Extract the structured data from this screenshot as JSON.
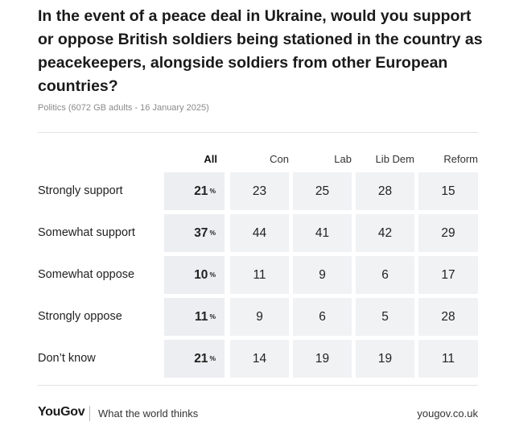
{
  "title": "In the event of a peace deal in Ukraine, would you support or oppose British soldiers being stationed in the country as peacekeepers, alongside soldiers from other European countries?",
  "subtitle": "Politics (6072 GB adults - 16 January 2025)",
  "columns": [
    "All",
    "Con",
    "Lab",
    "Lib Dem",
    "Reform"
  ],
  "percent_symbol": "%",
  "chart_data": {
    "type": "table",
    "title": "In the event of a peace deal in Ukraine, would you support or oppose British soldiers being stationed in the country as peacekeepers, alongside soldiers from other European countries?",
    "columns": [
      "All",
      "Con",
      "Lab",
      "Lib Dem",
      "Reform"
    ],
    "rows": [
      {
        "label": "Strongly support",
        "values": [
          "21",
          "23",
          "25",
          "28",
          "15"
        ]
      },
      {
        "label": "Somewhat support",
        "values": [
          "37",
          "44",
          "41",
          "42",
          "29"
        ]
      },
      {
        "label": "Somewhat oppose",
        "values": [
          "10",
          "11",
          "9",
          "6",
          "17"
        ]
      },
      {
        "label": "Strongly oppose",
        "values": [
          "11",
          "9",
          "6",
          "5",
          "28"
        ]
      },
      {
        "label": "Don’t know",
        "values": [
          "21",
          "14",
          "19",
          "19",
          "11"
        ]
      }
    ]
  },
  "footer": {
    "logo": "YouGov",
    "tagline": "What the world thinks",
    "url": "yougov.co.uk"
  }
}
